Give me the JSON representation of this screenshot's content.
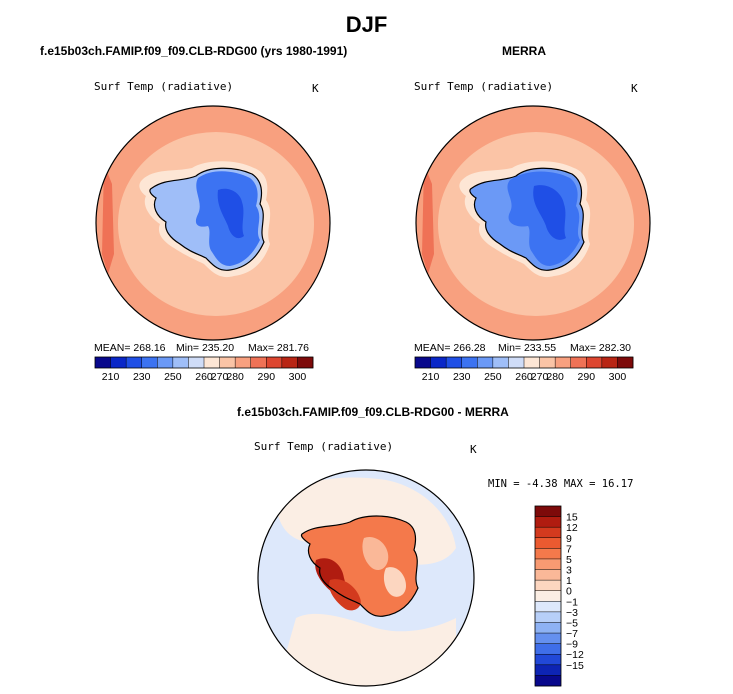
{
  "page": {
    "title": "DJF",
    "left_header": "f.e15b03ch.FAMIP.f09_f09.CLB-RDG00 (yrs 1980-1991)",
    "right_header": "MERRA",
    "diff_header": "f.e15b03ch.FAMIP.f09_f09.CLB-RDG00 - MERRA"
  },
  "chart_data": [
    {
      "type": "heatmap",
      "projection": "south-polar-stereographic",
      "variable": "Surf Temp (radiative)",
      "units": "K",
      "stats": {
        "mean_label": "MEAN= 268.16",
        "min_label": "Min= 235.20",
        "max_label": "Max= 281.76"
      },
      "mean": 268.16,
      "min": 235.2,
      "max": 281.76,
      "colorbar": {
        "orientation": "horizontal",
        "ticks": [
          "210",
          "230",
          "250",
          "260",
          "270",
          "280",
          "290",
          "300"
        ],
        "colors": [
          "#08088c",
          "#0a27c8",
          "#1f4fe6",
          "#3c73f2",
          "#6b99f6",
          "#9fbef8",
          "#cfdcf7",
          "#fde6d5",
          "#fbc4a6",
          "#f8a07f",
          "#ef7256",
          "#dd4630",
          "#b82514",
          "#7d0a0a"
        ]
      }
    },
    {
      "type": "heatmap",
      "projection": "south-polar-stereographic",
      "variable": "Surf Temp (radiative)",
      "units": "K",
      "stats": {
        "mean_label": "MEAN= 266.28",
        "min_label": "Min= 233.55",
        "max_label": "Max= 282.30"
      },
      "mean": 266.28,
      "min": 233.55,
      "max": 282.3,
      "colorbar": {
        "orientation": "horizontal",
        "ticks": [
          "210",
          "230",
          "250",
          "260",
          "270",
          "280",
          "290",
          "300"
        ],
        "colors": [
          "#08088c",
          "#0a27c8",
          "#1f4fe6",
          "#3c73f2",
          "#6b99f6",
          "#9fbef8",
          "#cfdcf7",
          "#fde6d5",
          "#fbc4a6",
          "#f8a07f",
          "#ef7256",
          "#dd4630",
          "#b82514",
          "#7d0a0a"
        ]
      }
    },
    {
      "type": "heatmap",
      "projection": "south-polar-stereographic",
      "variable": "Surf Temp (radiative)",
      "units": "K",
      "range_label": "MIN =  -4.38 MAX =  16.17",
      "min": -4.38,
      "max": 16.17,
      "colorbar": {
        "orientation": "vertical",
        "ticks": [
          "15",
          "12",
          "9",
          "7",
          "5",
          "3",
          "1",
          "0",
          "−1",
          "−3",
          "−5",
          "−7",
          "−9",
          "−12",
          "−15"
        ],
        "colors": [
          "#7d0a0a",
          "#b01c10",
          "#d33a1e",
          "#eb5a30",
          "#f4794b",
          "#f89a72",
          "#fab898",
          "#fcd6c0",
          "#fbeee4",
          "#dde8fb",
          "#b7cff8",
          "#8eb2f4",
          "#6590ef",
          "#3f6ee9",
          "#2148d8",
          "#0d24b4",
          "#08088c"
        ]
      }
    }
  ]
}
